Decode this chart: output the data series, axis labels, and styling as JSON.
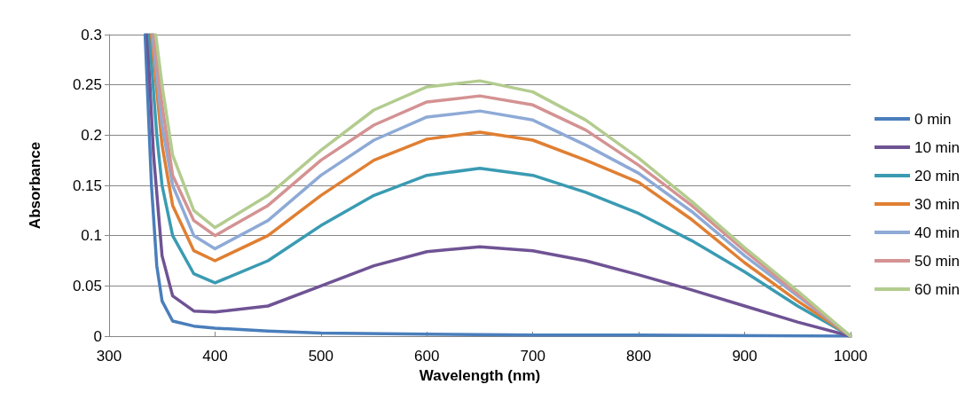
{
  "chart_data": {
    "type": "line",
    "xlabel": "Wavelength (nm)",
    "ylabel": "Absorbance",
    "xlim": [
      300,
      1000
    ],
    "xticks": [
      300,
      400,
      500,
      600,
      700,
      800,
      900,
      1000
    ],
    "ylim": [
      0,
      0.3
    ],
    "yticks": [
      0,
      0.05,
      0.1,
      0.15,
      0.2,
      0.25,
      0.3
    ],
    "grid": "y",
    "legend": "right",
    "marker": "none",
    "line_style": "solid",
    "series": [
      {
        "name": "0 min",
        "color": "#4a7ebb",
        "x": [
          334,
          340,
          345,
          350,
          360,
          380,
          400,
          450,
          500,
          600,
          700,
          800,
          1000
        ],
        "values": [
          0.3,
          0.15,
          0.07,
          0.035,
          0.015,
          0.01,
          0.008,
          0.005,
          0.003,
          0.002,
          0.001,
          0.001,
          0
        ]
      },
      {
        "name": "10 min",
        "color": "#6f5394",
        "x": [
          336,
          342,
          350,
          360,
          380,
          400,
          450,
          500,
          550,
          600,
          650,
          700,
          750,
          800,
          850,
          900,
          950,
          1000
        ],
        "values": [
          0.3,
          0.18,
          0.08,
          0.04,
          0.025,
          0.024,
          0.03,
          0.05,
          0.07,
          0.084,
          0.089,
          0.085,
          0.075,
          0.061,
          0.046,
          0.03,
          0.014,
          0
        ]
      },
      {
        "name": "20 min",
        "color": "#3a9bb3",
        "x": [
          338,
          345,
          350,
          360,
          380,
          400,
          450,
          500,
          550,
          600,
          650,
          700,
          750,
          800,
          850,
          900,
          950,
          1000
        ],
        "values": [
          0.3,
          0.2,
          0.15,
          0.1,
          0.062,
          0.053,
          0.075,
          0.11,
          0.14,
          0.16,
          0.167,
          0.16,
          0.143,
          0.122,
          0.095,
          0.064,
          0.03,
          0
        ]
      },
      {
        "name": "30 min",
        "color": "#e07f32",
        "x": [
          340,
          350,
          360,
          380,
          400,
          450,
          500,
          550,
          600,
          650,
          700,
          750,
          800,
          850,
          900,
          950,
          1000
        ],
        "values": [
          0.3,
          0.19,
          0.13,
          0.085,
          0.075,
          0.1,
          0.14,
          0.175,
          0.196,
          0.203,
          0.195,
          0.175,
          0.153,
          0.116,
          0.073,
          0.035,
          0
        ]
      },
      {
        "name": "40 min",
        "color": "#8eaad6",
        "x": [
          341,
          350,
          360,
          380,
          400,
          450,
          500,
          550,
          600,
          650,
          700,
          750,
          800,
          850,
          900,
          950,
          1000
        ],
        "values": [
          0.3,
          0.21,
          0.15,
          0.1,
          0.087,
          0.115,
          0.16,
          0.195,
          0.218,
          0.224,
          0.215,
          0.19,
          0.162,
          0.124,
          0.08,
          0.04,
          0
        ]
      },
      {
        "name": "50 min",
        "color": "#d49292",
        "x": [
          342,
          350,
          360,
          380,
          400,
          450,
          500,
          550,
          600,
          650,
          700,
          750,
          800,
          850,
          900,
          950,
          1000
        ],
        "values": [
          0.3,
          0.23,
          0.16,
          0.115,
          0.1,
          0.13,
          0.175,
          0.21,
          0.233,
          0.239,
          0.23,
          0.205,
          0.17,
          0.13,
          0.085,
          0.042,
          0
        ]
      },
      {
        "name": "60 min",
        "color": "#b3cc8f",
        "x": [
          344,
          350,
          360,
          380,
          400,
          450,
          500,
          550,
          600,
          650,
          700,
          750,
          800,
          850,
          900,
          950,
          1000
        ],
        "values": [
          0.3,
          0.25,
          0.18,
          0.125,
          0.108,
          0.14,
          0.185,
          0.225,
          0.248,
          0.254,
          0.243,
          0.215,
          0.177,
          0.134,
          0.088,
          0.045,
          0
        ]
      }
    ]
  }
}
